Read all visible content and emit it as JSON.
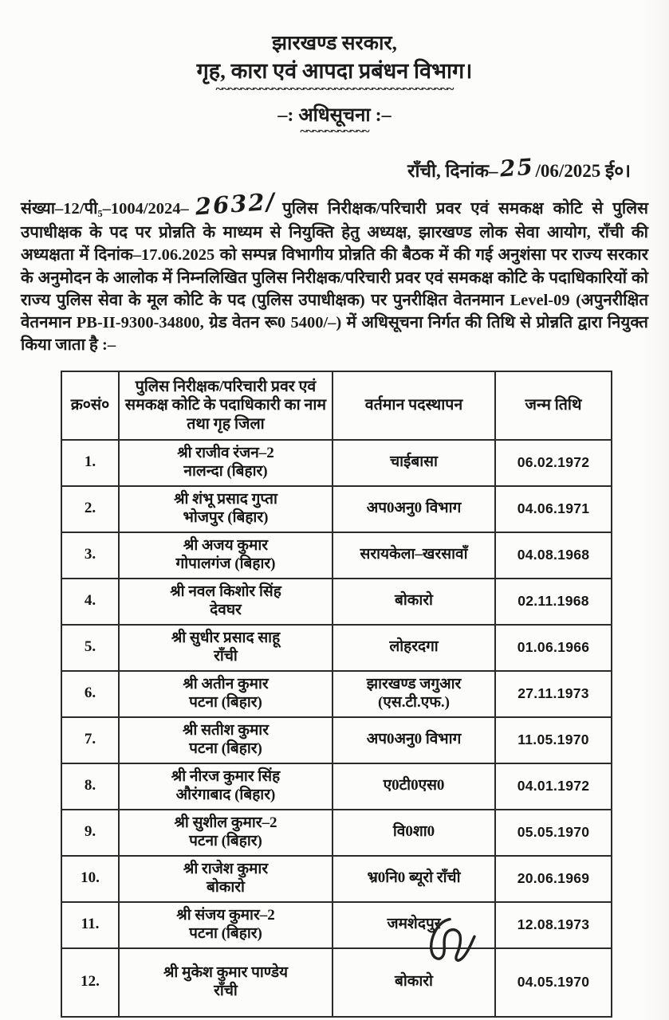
{
  "colors": {
    "ink": "#1b1b1b",
    "paper": "#fcfcfb",
    "table_border": "#2b2b2b"
  },
  "document": {
    "header": {
      "line1": "झारखण्ड सरकार,",
      "line2": "गृह, कारा एवं आपदा प्रबंधन विभाग।",
      "underline_long": "~~~~~~~~~~~~~~~~~~~~~~~~~~~~~~~~~~~~~~",
      "notification": "–: अधिसूचना :–",
      "underline_short": "~~~~~~~~~~~"
    },
    "dateline": {
      "prefix": "राँची, दिनांक–",
      "handwritten_day": "25",
      "suffix": "/06/2025 ई०।"
    },
    "body": {
      "ref": "संख्या–12/पी₅–1004/2024–",
      "handwritten_number": "2632/",
      "text": "पुलिस निरीक्षक/परिचारी प्रवर एवं समकक्ष कोटि से पुलिस उपाधीक्षक के पद पर प्रोन्नति के माध्यम से नियुक्ति हेतु अध्यक्ष, झारखण्ड लोक सेवा आयोग, राँची की अध्यक्षता में दिनांक–17.06.2025 को सम्पन्न विभागीय प्रोन्नति की बैठक में की गई अनुशंसा पर राज्य सरकार के अनुमोदन के आलोक में निम्नलिखित पुलिस निरीक्षक/परिचारी प्रवर एवं समकक्ष कोटि के पदाधिकारियों को राज्य पुलिस सेवा के मूल कोटि के पद (पुलिस उपाधीक्षक) पर पुनरीक्षित वेतनमान Level-09 (अपुनरीक्षित वेतनमान PB-II-9300-34800, ग्रेड वेतन रू0 5400/–) में अधिसूचना निर्गत की तिथि से प्रोन्नति द्वारा नियुक्त किया जाता है :–"
    },
    "table": {
      "headers": [
        "क्र०सं०",
        "पुलिस निरीक्षक/परिचारी प्रवर एवं समकक्ष कोटि के पदाधिकारी का नाम तथा गृह जिला",
        "वर्तमान पदस्थापन",
        "जन्म तिथि"
      ],
      "rows": [
        {
          "sn": "1.",
          "name": "श्री राजीव रंजन–2",
          "district": "नालन्दा (बिहार)",
          "posting": "चाईबासा",
          "dob": "06.02.1972"
        },
        {
          "sn": "2.",
          "name": "श्री शंभू प्रसाद गुप्ता",
          "district": "भोजपुर (बिहार)",
          "posting": "अप0अनु0 विभाग",
          "dob": "04.06.1971"
        },
        {
          "sn": "3.",
          "name": "श्री अजय कुमार",
          "district": "गोपालगंज (बिहार)",
          "posting": "सरायकेला–खरसावाँ",
          "dob": "04.08.1968"
        },
        {
          "sn": "4.",
          "name": "श्री नवल किशोर सिंह",
          "district": "देवघर",
          "posting": "बोकारो",
          "dob": "02.11.1968"
        },
        {
          "sn": "5.",
          "name": "श्री सुधीर प्रसाद साहू",
          "district": "राँची",
          "posting": "लोहरदगा",
          "dob": "01.06.1966"
        },
        {
          "sn": "6.",
          "name": "श्री अतीन कुमार",
          "district": "पटना (बिहार)",
          "posting": "झारखण्ड जगुआर (एस.टी.एफ.)",
          "dob": "27.11.1973"
        },
        {
          "sn": "7.",
          "name": "श्री सतीश कुमार",
          "district": "पटना (बिहार)",
          "posting": "अप0अनु0 विभाग",
          "dob": "11.05.1970"
        },
        {
          "sn": "8.",
          "name": "श्री नीरज कुमार सिंह",
          "district": "औरंगाबाद (बिहार)",
          "posting": "ए0टी0एस0",
          "dob": "04.01.1972"
        },
        {
          "sn": "9.",
          "name": "श्री सुशील कुमार–2",
          "district": "पटना (बिहार)",
          "posting": "वि0शा0",
          "dob": "05.05.1970"
        },
        {
          "sn": "10.",
          "name": "श्री राजेश कुमार",
          "district": "बोकारो",
          "posting": "भ्र0नि0 ब्यूरो राँची",
          "dob": "20.06.1969"
        },
        {
          "sn": "11.",
          "name": "श्री संजय कुमार–2",
          "district": "पटना (बिहार)",
          "posting": "जमशेदपुर",
          "dob": "12.08.1973"
        },
        {
          "sn": "12.",
          "name": "श्री मुकेश कुमार पाण्डेय",
          "district": "राँची",
          "posting": "बोकारो",
          "dob": "04.05.1970"
        }
      ]
    },
    "signature_mark": "handwritten-initial"
  }
}
